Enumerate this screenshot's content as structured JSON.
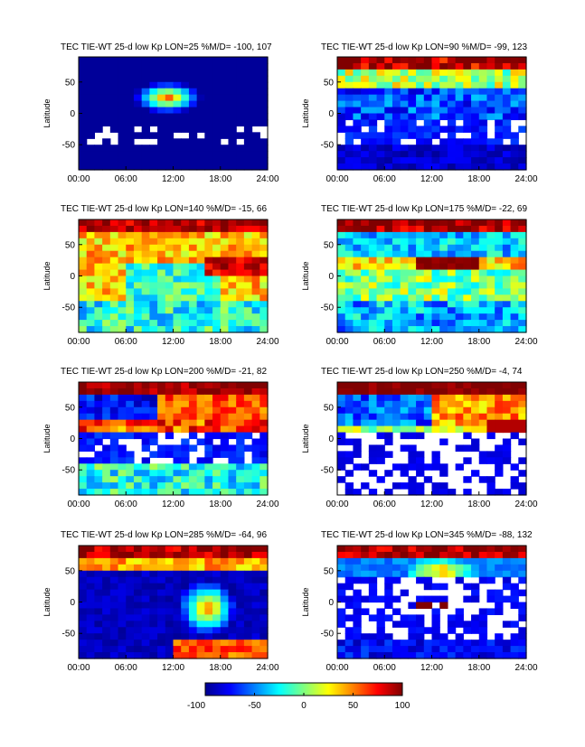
{
  "figure": {
    "panels": [
      {
        "title": "TEC TIE-WT 25-d low Kp LON=25 %M/D= -100,  107"
      },
      {
        "title": "TEC TIE-WT 25-d low Kp LON=90 %M/D=  -99,  123"
      },
      {
        "title": "TEC TIE-WT 25-d low Kp LON=140 %M/D=  -15,  66"
      },
      {
        "title": "TEC TIE-WT 25-d low Kp LON=175 %M/D=  -22,  69"
      },
      {
        "title": "TEC TIE-WT 25-d low Kp LON=200 %M/D=  -21,  82"
      },
      {
        "title": "TEC TIE-WT 25-d low Kp LON=250 %M/D=   -4,  74"
      },
      {
        "title": "TEC TIE-WT 25-d low Kp LON=285 %M/D=  -64,  96"
      },
      {
        "title": "TEC TIE-WT 25-d low Kp LON=345 %M/D=  -88,  132"
      }
    ]
  },
  "chart_data": {
    "type": "heatmap",
    "panel_count": 8,
    "ylabel": "Latitude",
    "xticks": [
      "00:00",
      "06:00",
      "12:00",
      "18:00",
      "24:00"
    ],
    "yticks": [
      50,
      0,
      -50
    ],
    "xlim": [
      0,
      24
    ],
    "ylim": [
      -90,
      90
    ],
    "colorbar": {
      "ticks": [
        "-100",
        "-50",
        "0",
        "50",
        "100"
      ],
      "range": [
        -100,
        100
      ],
      "colormap": "jet"
    },
    "panels": [
      {
        "lon": 25,
        "min_pct": -100,
        "max_pct": 107
      },
      {
        "lon": 90,
        "min_pct": -99,
        "max_pct": 123
      },
      {
        "lon": 140,
        "min_pct": -15,
        "max_pct": 66
      },
      {
        "lon": 175,
        "min_pct": -22,
        "max_pct": 69
      },
      {
        "lon": 200,
        "min_pct": -21,
        "max_pct": 82
      },
      {
        "lon": 250,
        "min_pct": -4,
        "max_pct": 74
      },
      {
        "lon": 285,
        "min_pct": -64,
        "max_pct": 96
      },
      {
        "lon": 345,
        "min_pct": -88,
        "max_pct": 132
      }
    ]
  }
}
